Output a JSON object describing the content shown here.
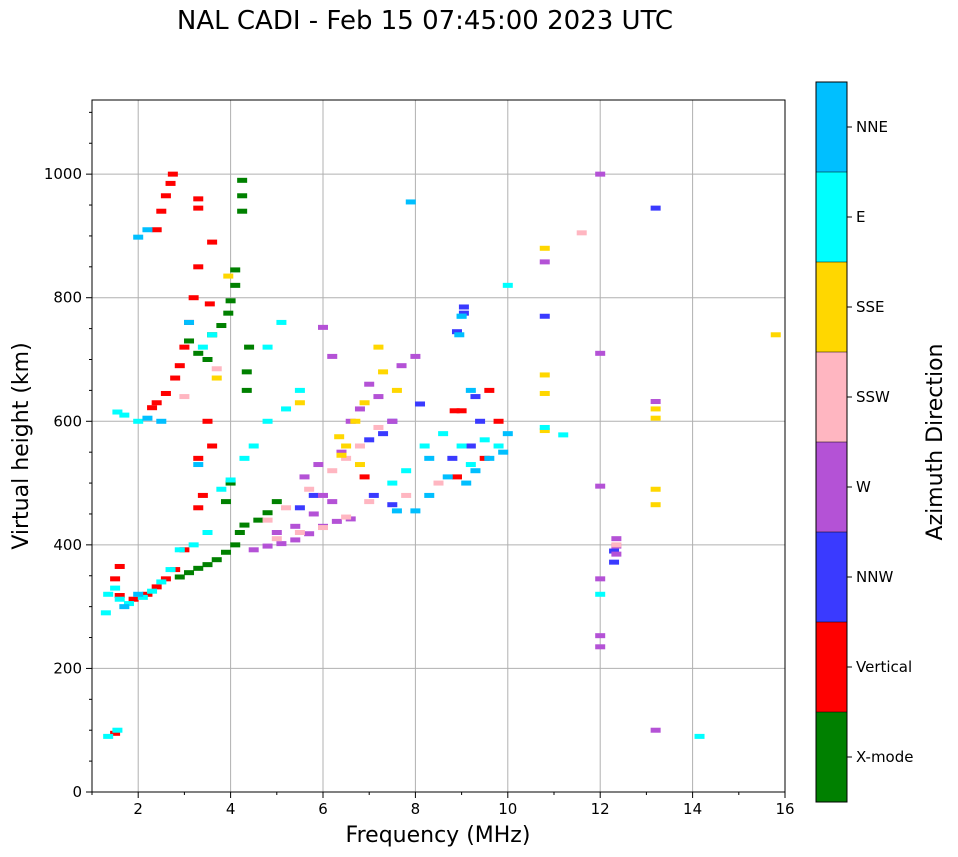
{
  "title": "NAL CADI - Feb 15 07:45:00 2023 UTC",
  "chart_data": {
    "type": "scatter",
    "title": "NAL CADI - Feb 15 07:45:00 2023 UTC",
    "xlabel": "Frequency (MHz)",
    "ylabel": "Virtual height (km)",
    "xlim": [
      1,
      16
    ],
    "ylim": [
      0,
      1120
    ],
    "xticks": [
      2,
      4,
      6,
      8,
      10,
      12,
      14,
      16
    ],
    "yticks": [
      0,
      200,
      400,
      600,
      800,
      1000
    ],
    "grid": true,
    "colorbar": {
      "label": "Azimuth Direction",
      "categories": [
        "X-mode",
        "Vertical",
        "NNW",
        "W",
        "SSW",
        "SSE",
        "E",
        "NNE"
      ],
      "colors": [
        "#008000",
        "#ff0000",
        "#3a3aff",
        "#b452d6",
        "#ffb6c1",
        "#ffd700",
        "#00ffff",
        "#00bfff"
      ]
    },
    "series": [
      {
        "name": "X-mode",
        "points": [
          [
            2.9,
            348
          ],
          [
            3.1,
            355
          ],
          [
            3.3,
            362
          ],
          [
            3.5,
            368
          ],
          [
            3.7,
            376
          ],
          [
            3.9,
            388
          ],
          [
            4.1,
            400
          ],
          [
            4.2,
            420
          ],
          [
            4.3,
            432
          ],
          [
            4.6,
            440
          ],
          [
            4.8,
            452
          ],
          [
            5.0,
            470
          ],
          [
            4.25,
            990
          ],
          [
            4.25,
            965
          ],
          [
            4.25,
            940
          ],
          [
            4.1,
            845
          ],
          [
            4.1,
            820
          ],
          [
            4.0,
            795
          ],
          [
            3.95,
            775
          ],
          [
            3.8,
            755
          ],
          [
            3.6,
            740
          ],
          [
            4.35,
            680
          ],
          [
            4.35,
            650
          ],
          [
            4.4,
            720
          ],
          [
            3.5,
            700
          ],
          [
            3.3,
            710
          ],
          [
            3.1,
            730
          ],
          [
            4.0,
            500
          ],
          [
            3.9,
            470
          ]
        ]
      },
      {
        "name": "Vertical",
        "points": [
          [
            2.75,
            1000
          ],
          [
            2.7,
            985
          ],
          [
            2.6,
            965
          ],
          [
            2.5,
            940
          ],
          [
            2.4,
            910
          ],
          [
            3.3,
            960
          ],
          [
            3.3,
            945
          ],
          [
            3.6,
            890
          ],
          [
            3.3,
            850
          ],
          [
            3.2,
            800
          ],
          [
            3.1,
            760
          ],
          [
            3.0,
            720
          ],
          [
            2.9,
            690
          ],
          [
            2.8,
            670
          ],
          [
            2.6,
            645
          ],
          [
            2.4,
            630
          ],
          [
            2.3,
            622
          ],
          [
            3.55,
            790
          ],
          [
            3.3,
            540
          ],
          [
            3.5,
            600
          ],
          [
            3.6,
            560
          ],
          [
            3.3,
            460
          ],
          [
            3.4,
            480
          ],
          [
            3.0,
            392
          ],
          [
            2.8,
            360
          ],
          [
            2.6,
            345
          ],
          [
            2.4,
            332
          ],
          [
            2.2,
            320
          ],
          [
            1.9,
            312
          ],
          [
            1.6,
            318
          ],
          [
            1.5,
            345
          ],
          [
            1.6,
            365
          ],
          [
            8.85,
            617
          ],
          [
            9.0,
            617
          ],
          [
            9.6,
            650
          ],
          [
            9.8,
            600
          ],
          [
            9.5,
            540
          ],
          [
            8.9,
            510
          ],
          [
            1.5,
            95
          ],
          [
            6.9,
            510
          ]
        ]
      },
      {
        "name": "NNW",
        "points": [
          [
            9.05,
            785
          ],
          [
            9.05,
            775
          ],
          [
            8.9,
            745
          ],
          [
            9.3,
            640
          ],
          [
            8.1,
            628
          ],
          [
            9.4,
            600
          ],
          [
            9.2,
            560
          ],
          [
            8.8,
            540
          ],
          [
            7.5,
            600
          ],
          [
            7.3,
            580
          ],
          [
            7.0,
            570
          ],
          [
            10.8,
            770
          ],
          [
            12.3,
            372
          ],
          [
            12.3,
            390
          ],
          [
            13.2,
            945
          ],
          [
            7.5,
            465
          ],
          [
            7.1,
            480
          ],
          [
            5.5,
            460
          ],
          [
            5.8,
            480
          ]
        ]
      },
      {
        "name": "W",
        "points": [
          [
            4.5,
            392
          ],
          [
            4.8,
            398
          ],
          [
            5.1,
            402
          ],
          [
            5.4,
            408
          ],
          [
            5.7,
            418
          ],
          [
            6.0,
            430
          ],
          [
            6.3,
            438
          ],
          [
            6.6,
            442
          ],
          [
            5.0,
            420
          ],
          [
            5.4,
            430
          ],
          [
            5.8,
            450
          ],
          [
            6.0,
            480
          ],
          [
            6.2,
            470
          ],
          [
            5.6,
            510
          ],
          [
            5.9,
            530
          ],
          [
            6.4,
            550
          ],
          [
            6.6,
            600
          ],
          [
            6.8,
            620
          ],
          [
            7.0,
            660
          ],
          [
            7.2,
            640
          ],
          [
            7.5,
            600
          ],
          [
            7.7,
            690
          ],
          [
            8.0,
            705
          ],
          [
            12.35,
            410
          ],
          [
            12.35,
            398
          ],
          [
            12.35,
            385
          ],
          [
            12.0,
            345
          ],
          [
            12.0,
            253
          ],
          [
            12.0,
            235
          ],
          [
            12.0,
            710
          ],
          [
            12.0,
            495
          ],
          [
            10.8,
            858
          ],
          [
            13.2,
            632
          ],
          [
            6.0,
            752
          ],
          [
            6.2,
            705
          ],
          [
            12.0,
            1000
          ],
          [
            13.2,
            100
          ]
        ]
      },
      {
        "name": "SSW",
        "points": [
          [
            5.0,
            410
          ],
          [
            5.5,
            420
          ],
          [
            6.0,
            428
          ],
          [
            6.5,
            445
          ],
          [
            7.0,
            470
          ],
          [
            7.8,
            480
          ],
          [
            4.8,
            440
          ],
          [
            5.2,
            460
          ],
          [
            5.7,
            490
          ],
          [
            6.2,
            520
          ],
          [
            6.5,
            540
          ],
          [
            6.8,
            560
          ],
          [
            7.2,
            590
          ],
          [
            11.6,
            905
          ],
          [
            3.7,
            685
          ],
          [
            3.0,
            640
          ],
          [
            12.35,
            400
          ],
          [
            8.5,
            500
          ]
        ]
      },
      {
        "name": "SSE",
        "points": [
          [
            6.35,
            575
          ],
          [
            6.5,
            560
          ],
          [
            6.7,
            600
          ],
          [
            6.9,
            630
          ],
          [
            7.2,
            720
          ],
          [
            7.3,
            680
          ],
          [
            7.6,
            650
          ],
          [
            6.4,
            545
          ],
          [
            6.8,
            530
          ],
          [
            10.8,
            880
          ],
          [
            10.8,
            675
          ],
          [
            10.8,
            645
          ],
          [
            10.8,
            585
          ],
          [
            13.2,
            620
          ],
          [
            13.2,
            605
          ],
          [
            13.2,
            490
          ],
          [
            13.2,
            465
          ],
          [
            15.8,
            740
          ],
          [
            5.5,
            630
          ],
          [
            3.7,
            670
          ],
          [
            3.95,
            835
          ]
        ]
      },
      {
        "name": "E",
        "points": [
          [
            2.9,
            392
          ],
          [
            2.7,
            360
          ],
          [
            2.5,
            340
          ],
          [
            2.3,
            325
          ],
          [
            2.1,
            315
          ],
          [
            1.8,
            305
          ],
          [
            1.6,
            312
          ],
          [
            1.35,
            320
          ],
          [
            1.3,
            290
          ],
          [
            1.5,
            330
          ],
          [
            2.0,
            600
          ],
          [
            1.7,
            610
          ],
          [
            1.55,
            615
          ],
          [
            3.2,
            400
          ],
          [
            3.5,
            420
          ],
          [
            3.8,
            490
          ],
          [
            4.0,
            505
          ],
          [
            4.3,
            540
          ],
          [
            4.5,
            560
          ],
          [
            4.8,
            600
          ],
          [
            5.2,
            620
          ],
          [
            5.5,
            650
          ],
          [
            5.1,
            760
          ],
          [
            4.8,
            720
          ],
          [
            7.5,
            500
          ],
          [
            7.8,
            520
          ],
          [
            8.2,
            560
          ],
          [
            8.6,
            580
          ],
          [
            9.0,
            560
          ],
          [
            9.2,
            530
          ],
          [
            9.5,
            570
          ],
          [
            9.8,
            560
          ],
          [
            10.0,
            820
          ],
          [
            12.0,
            320
          ],
          [
            14.15,
            90
          ],
          [
            1.55,
            100
          ],
          [
            1.35,
            90
          ],
          [
            11.2,
            578
          ],
          [
            10.8,
            590
          ],
          [
            9.0,
            770
          ],
          [
            3.6,
            740
          ],
          [
            3.4,
            720
          ]
        ]
      },
      {
        "name": "NNE",
        "points": [
          [
            9.0,
            770
          ],
          [
            8.95,
            740
          ],
          [
            9.2,
            650
          ],
          [
            8.3,
            540
          ],
          [
            8.7,
            510
          ],
          [
            9.1,
            500
          ],
          [
            9.3,
            520
          ],
          [
            9.6,
            540
          ],
          [
            9.9,
            550
          ],
          [
            10.0,
            580
          ],
          [
            7.6,
            455
          ],
          [
            8.0,
            455
          ],
          [
            8.3,
            480
          ],
          [
            2.5,
            600
          ],
          [
            2.2,
            605
          ],
          [
            2.0,
            898
          ],
          [
            2.2,
            910
          ],
          [
            7.9,
            955
          ],
          [
            3.3,
            530
          ],
          [
            2.0,
            320
          ],
          [
            1.7,
            300
          ],
          [
            3.1,
            760
          ]
        ]
      }
    ]
  }
}
